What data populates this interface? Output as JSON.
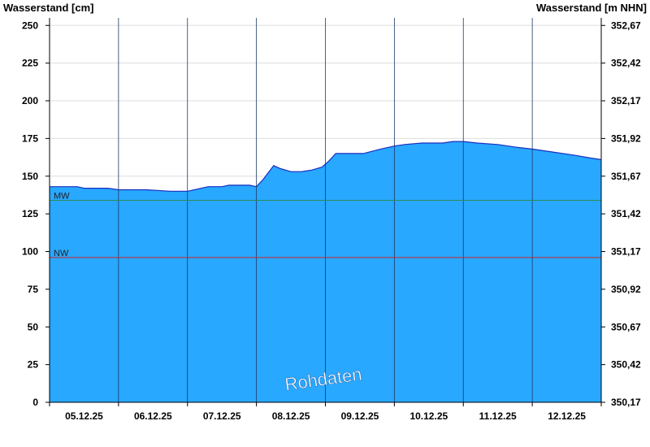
{
  "chart_data": {
    "type": "area",
    "left_axis_title": "Wasserstand [cm]",
    "right_axis_title": "Wasserstand [m NHN]",
    "y_left_ticks": [
      "250",
      "225",
      "200",
      "175",
      "150",
      "125",
      "100",
      "75",
      "50",
      "25",
      "0"
    ],
    "y_right_ticks": [
      "352,67",
      "352,42",
      "352,17",
      "351,92",
      "351,67",
      "351,42",
      "351,17",
      "350,92",
      "350,67",
      "350,42",
      "350,17"
    ],
    "x_tick_labels": [
      "05.12.25",
      "06.12.25",
      "07.12.25",
      "08.12.25",
      "09.12.25",
      "10.12.25",
      "11.12.25",
      "12.12.25"
    ],
    "ylim": [
      0,
      255
    ],
    "xlim": [
      0,
      8
    ],
    "grid": true,
    "series": [
      {
        "x": [
          0,
          0.4,
          0.5,
          0.85,
          1.0,
          1.4,
          1.75,
          2.0,
          2.3,
          2.5,
          2.6,
          2.75,
          2.9,
          3.0,
          3.1,
          3.25,
          3.35,
          3.5,
          3.65,
          3.8,
          3.95,
          4.05,
          4.15,
          4.35,
          4.55,
          4.8,
          5.0,
          5.15,
          5.4,
          5.7,
          5.85,
          6.0,
          6.2,
          6.5,
          6.8,
          7.0,
          7.3,
          7.6,
          7.85,
          8.0
        ],
        "y": [
          143,
          143,
          142,
          142,
          141,
          141,
          140,
          140,
          143,
          143,
          144,
          144,
          144,
          143,
          148,
          157,
          155,
          153,
          153,
          154,
          156,
          160,
          165,
          165,
          165,
          168,
          170,
          171,
          172,
          172,
          173,
          173,
          172,
          171,
          169,
          168,
          166,
          164,
          162,
          161
        ]
      }
    ],
    "reference_lines": [
      {
        "label": "MW",
        "value": 134,
        "color": "#2e8b57"
      },
      {
        "label": "NW",
        "value": 96,
        "color": "#cc2222"
      }
    ],
    "watermark": "Rohdaten",
    "colors": {
      "fill": "#28a8ff",
      "line": "#1a2fbf",
      "grid_dark": "#1a3a66",
      "grid_light": "#dddddd"
    }
  }
}
